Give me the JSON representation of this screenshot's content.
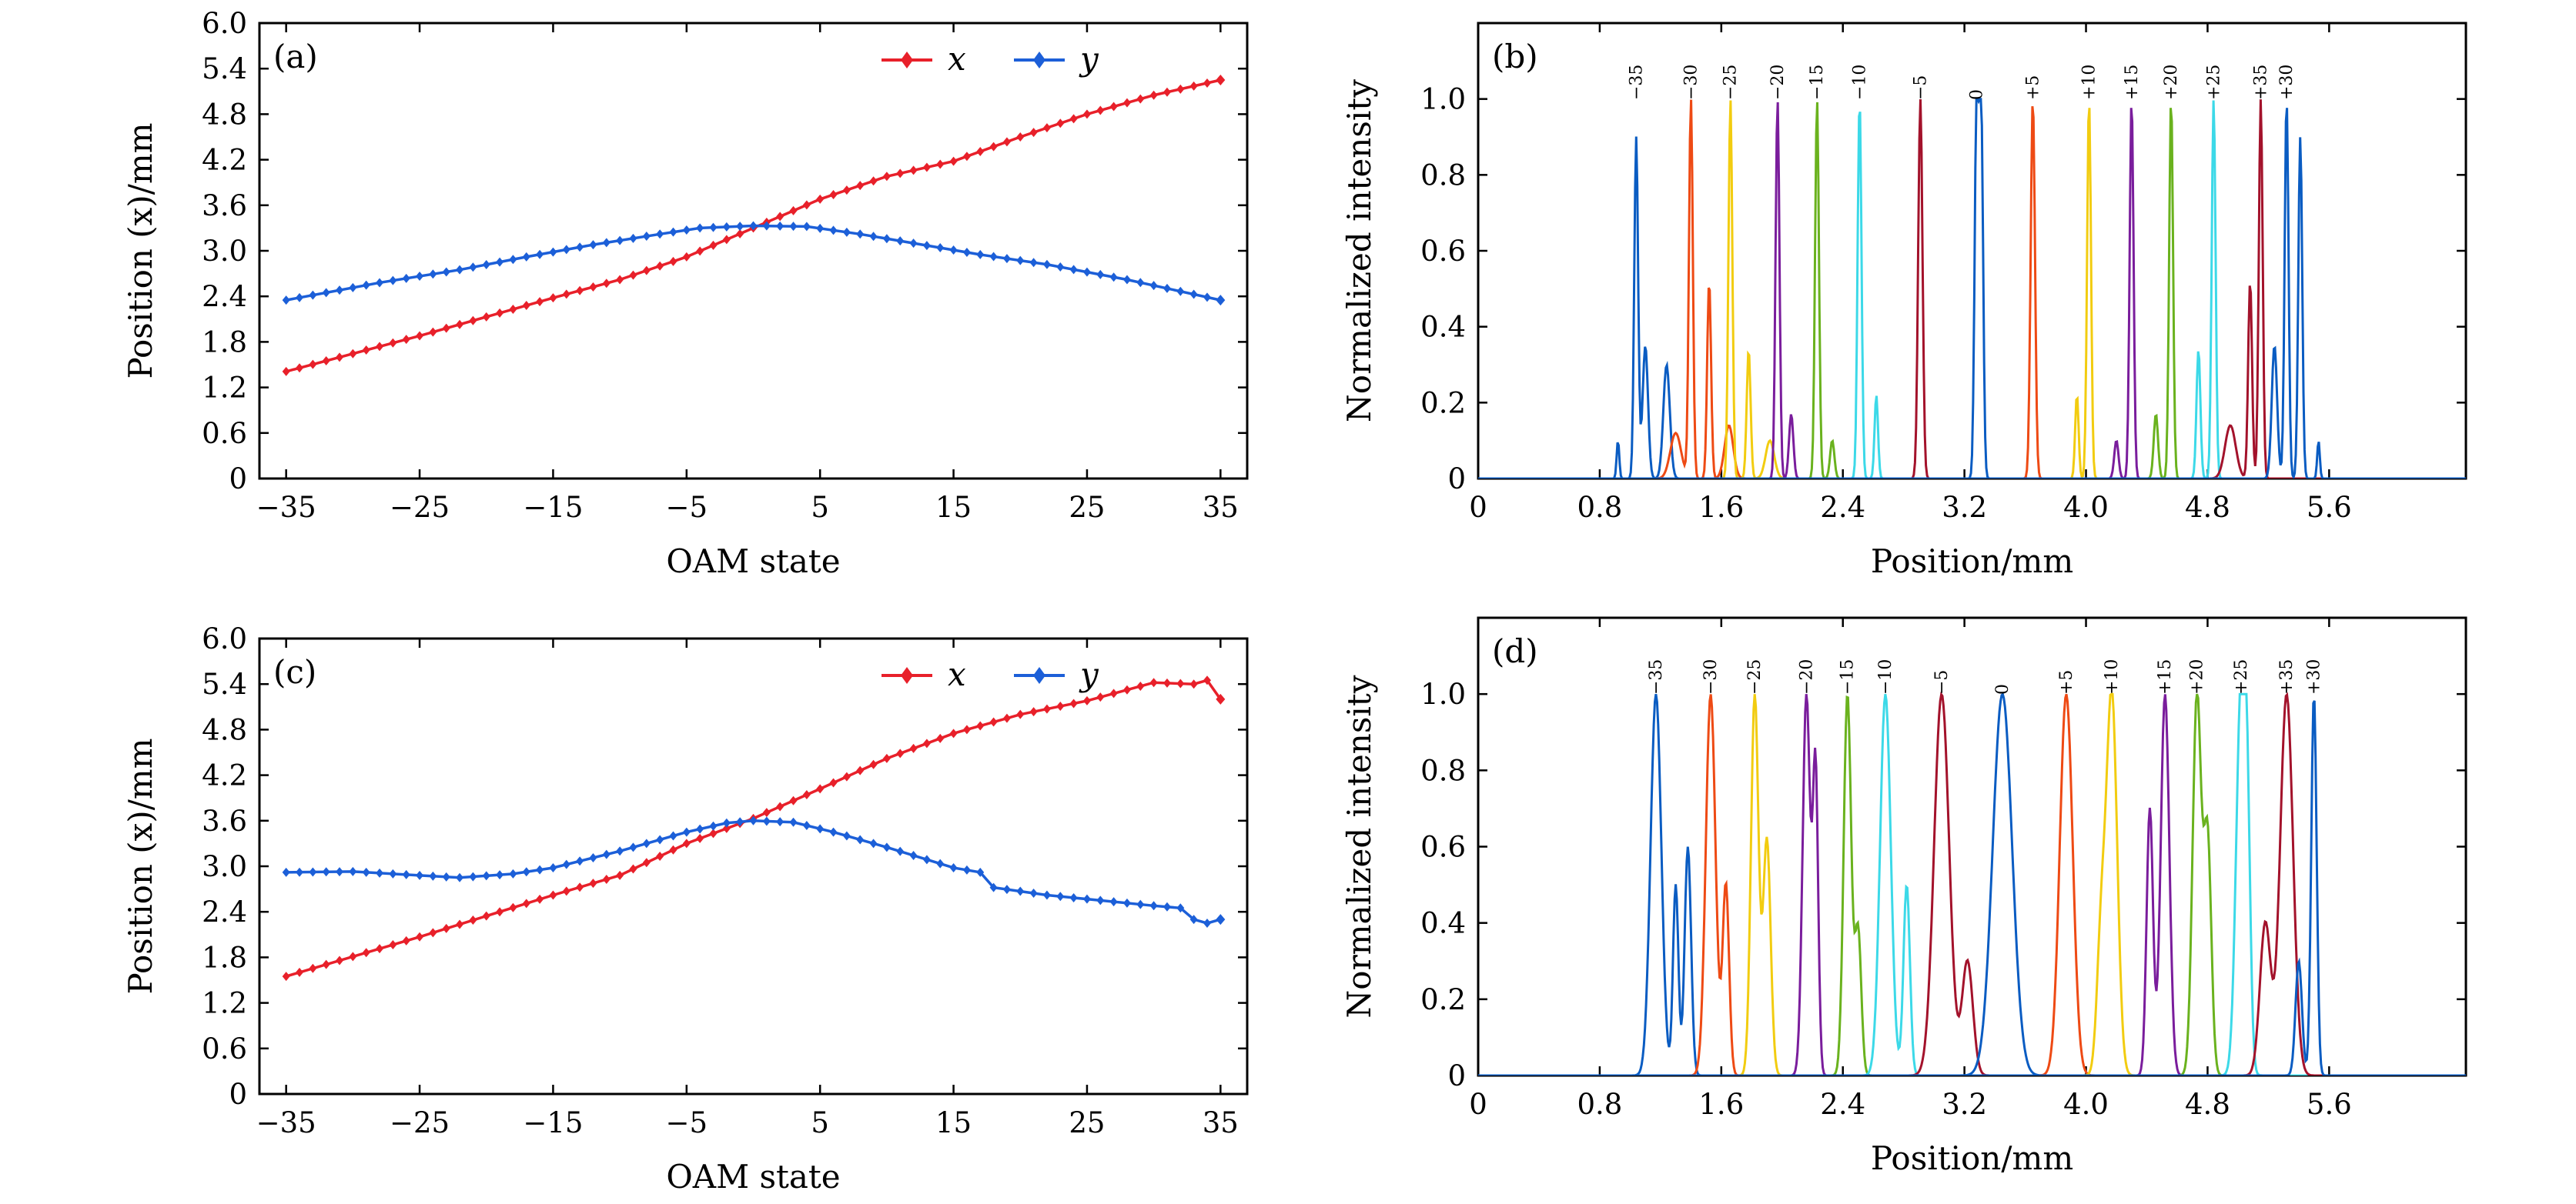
{
  "figure": {
    "panels": [
      {
        "id": "a",
        "label": "(a)"
      },
      {
        "id": "b",
        "label": "(b)"
      },
      {
        "id": "c",
        "label": "(c)"
      },
      {
        "id": "d",
        "label": "(d)"
      }
    ]
  },
  "chart_data": [
    {
      "panel": "(a)",
      "type": "line",
      "xlabel": "OAM state",
      "ylabel": "Position (x)/mm",
      "xlim": [
        -37,
        37
      ],
      "ylim": [
        0,
        6.0
      ],
      "xticks": [
        "−35",
        "−25",
        "−15",
        "−5",
        "5",
        "15",
        "25",
        "35"
      ],
      "xtick_values": [
        -35,
        -25,
        -15,
        -5,
        5,
        15,
        25,
        35
      ],
      "yticks": [
        "0",
        "0.6",
        "1.2",
        "1.8",
        "2.4",
        "3.0",
        "3.6",
        "4.2",
        "4.8",
        "5.4",
        "6.0"
      ],
      "ytick_values": [
        0,
        0.6,
        1.2,
        1.8,
        2.4,
        3.0,
        3.6,
        4.2,
        4.8,
        5.4,
        6.0
      ],
      "legend_position": "top-right",
      "series": [
        {
          "name": "x",
          "color": "#e8202a",
          "marker": "diamond",
          "points": [
            [
              -35,
              1.41
            ],
            [
              -25,
              1.88
            ],
            [
              -15,
              2.38
            ],
            [
              -10,
              2.62
            ],
            [
              -5,
              2.92
            ],
            [
              0,
              3.3
            ],
            [
              5,
              3.68
            ],
            [
              10,
              3.98
            ],
            [
              15,
              4.18
            ],
            [
              20,
              4.5
            ],
            [
              25,
              4.8
            ],
            [
              30,
              5.05
            ],
            [
              35,
              5.25
            ]
          ]
        },
        {
          "name": "y",
          "color": "#1c5fd8",
          "marker": "diamond",
          "points": [
            [
              -35,
              2.35
            ],
            [
              -28,
              2.58
            ],
            [
              -22,
              2.75
            ],
            [
              -17,
              2.92
            ],
            [
              -12,
              3.08
            ],
            [
              -7,
              3.22
            ],
            [
              -4,
              3.3
            ],
            [
              0,
              3.33
            ],
            [
              4,
              3.32
            ],
            [
              8,
              3.22
            ],
            [
              12,
              3.1
            ],
            [
              17,
              2.95
            ],
            [
              22,
              2.82
            ],
            [
              28,
              2.62
            ],
            [
              35,
              2.35
            ]
          ]
        }
      ]
    },
    {
      "panel": "(b)",
      "type": "line",
      "xlabel": "Position/mm",
      "ylabel": "Normalized intensity",
      "xlim": [
        0,
        6.5
      ],
      "ylim": [
        0,
        1.2
      ],
      "xticks": [
        "0",
        "0.8",
        "1.6",
        "2.4",
        "3.2",
        "4.0",
        "4.8",
        "5.6"
      ],
      "xtick_values": [
        0,
        0.8,
        1.6,
        2.4,
        3.2,
        4.0,
        4.8,
        5.6
      ],
      "yticks": [
        "0",
        "0.2",
        "0.4",
        "0.6",
        "0.8",
        "1.0"
      ],
      "ytick_values": [
        0,
        0.2,
        0.4,
        0.6,
        0.8,
        1.0
      ],
      "peak_labels": [
        "−35",
        "−30",
        "−25",
        "−20",
        "−15",
        "−10",
        "−5",
        "0",
        "+5",
        "+10",
        "+15",
        "+20",
        "+25",
        "+35",
        "+30"
      ],
      "series": [
        {
          "label": "−35",
          "color": "#0a5cc2",
          "peaks": [
            [
              1.04,
              0.9,
              0.018
            ],
            [
              1.1,
              0.35,
              0.025
            ],
            [
              1.24,
              0.3,
              0.03
            ],
            [
              0.92,
              0.1,
              0.012
            ]
          ]
        },
        {
          "label": "−30",
          "color": "#ee4a14",
          "peaks": [
            [
              1.4,
              1.0,
              0.018
            ],
            [
              1.52,
              0.52,
              0.018
            ],
            [
              1.65,
              0.14,
              0.04
            ],
            [
              1.3,
              0.12,
              0.05
            ]
          ]
        },
        {
          "label": "−25",
          "color": "#f2cc10",
          "peaks": [
            [
              1.66,
              1.0,
              0.018
            ],
            [
              1.78,
              0.34,
              0.018
            ],
            [
              1.92,
              0.1,
              0.04
            ]
          ]
        },
        {
          "label": "−20",
          "color": "#7a1d9c",
          "peaks": [
            [
              1.97,
              1.0,
              0.018
            ],
            [
              2.06,
              0.17,
              0.02
            ]
          ]
        },
        {
          "label": "−15",
          "color": "#6ab21e",
          "peaks": [
            [
              2.23,
              1.0,
              0.018
            ],
            [
              2.33,
              0.1,
              0.02
            ]
          ]
        },
        {
          "label": "−10",
          "color": "#3cd9e8",
          "peaks": [
            [
              2.51,
              1.0,
              0.018
            ],
            [
              2.62,
              0.22,
              0.016
            ]
          ]
        },
        {
          "label": "−5",
          "color": "#a3122b",
          "peaks": [
            [
              2.91,
              1.0,
              0.02
            ]
          ]
        },
        {
          "label": "0",
          "color": "#0a5cc2",
          "peaks": [
            [
              3.28,
              1.0,
              0.018
            ],
            [
              3.31,
              0.98,
              0.018
            ]
          ]
        },
        {
          "label": "+5",
          "color": "#ee4a14",
          "peaks": [
            [
              3.65,
              1.0,
              0.02
            ]
          ]
        },
        {
          "label": "+10",
          "color": "#f2cc10",
          "peaks": [
            [
              4.02,
              1.0,
              0.018
            ],
            [
              3.94,
              0.22,
              0.016
            ]
          ]
        },
        {
          "label": "+15",
          "color": "#7a1d9c",
          "peaks": [
            [
              4.3,
              1.0,
              0.018
            ],
            [
              4.2,
              0.1,
              0.02
            ]
          ]
        },
        {
          "label": "+20",
          "color": "#6ab21e",
          "peaks": [
            [
              4.56,
              1.0,
              0.018
            ],
            [
              4.46,
              0.17,
              0.02
            ]
          ]
        },
        {
          "label": "+25",
          "color": "#3cd9e8",
          "peaks": [
            [
              4.84,
              1.0,
              0.018
            ],
            [
              4.74,
              0.34,
              0.018
            ]
          ]
        },
        {
          "label": "+35",
          "color": "#a3122b",
          "peaks": [
            [
              5.15,
              1.0,
              0.018
            ],
            [
              5.08,
              0.52,
              0.018
            ],
            [
              4.95,
              0.14,
              0.05
            ]
          ]
        },
        {
          "label": "+30",
          "color": "#0a5cc2",
          "peaks": [
            [
              5.32,
              1.0,
              0.018
            ],
            [
              5.41,
              0.9,
              0.018
            ],
            [
              5.24,
              0.35,
              0.025
            ],
            [
              5.53,
              0.1,
              0.012
            ]
          ]
        }
      ]
    },
    {
      "panel": "(c)",
      "type": "line",
      "xlabel": "OAM state",
      "ylabel": "Position (x)/mm",
      "xlim": [
        -37,
        37
      ],
      "ylim": [
        0,
        6.0
      ],
      "xticks": [
        "−35",
        "−25",
        "−15",
        "−5",
        "5",
        "15",
        "25",
        "35"
      ],
      "xtick_values": [
        -35,
        -25,
        -15,
        -5,
        5,
        15,
        25,
        35
      ],
      "yticks": [
        "0",
        "0.6",
        "1.2",
        "1.8",
        "2.4",
        "3.0",
        "3.6",
        "4.2",
        "4.8",
        "5.4",
        "6.0"
      ],
      "ytick_values": [
        0,
        0.6,
        1.2,
        1.8,
        2.4,
        3.0,
        3.6,
        4.2,
        4.8,
        5.4,
        6.0
      ],
      "legend_position": "top-right",
      "series": [
        {
          "name": "x",
          "color": "#e8202a",
          "marker": "diamond",
          "points": [
            [
              -35,
              1.55
            ],
            [
              -25,
              2.07
            ],
            [
              -15,
              2.62
            ],
            [
              -10,
              2.88
            ],
            [
              -5,
              3.3
            ],
            [
              0,
              3.63
            ],
            [
              5,
              4.02
            ],
            [
              10,
              4.42
            ],
            [
              15,
              4.75
            ],
            [
              20,
              5.0
            ],
            [
              25,
              5.18
            ],
            [
              30,
              5.42
            ],
            [
              33,
              5.4
            ],
            [
              34,
              5.45
            ],
            [
              35,
              5.2
            ]
          ]
        },
        {
          "name": "y",
          "color": "#1c5fd8",
          "marker": "diamond",
          "points": [
            [
              -35,
              2.92
            ],
            [
              -30,
              2.93
            ],
            [
              -25,
              2.88
            ],
            [
              -22,
              2.85
            ],
            [
              -18,
              2.9
            ],
            [
              -15,
              2.98
            ],
            [
              -10,
              3.2
            ],
            [
              -5,
              3.45
            ],
            [
              -2,
              3.57
            ],
            [
              0,
              3.6
            ],
            [
              3,
              3.58
            ],
            [
              6,
              3.45
            ],
            [
              10,
              3.25
            ],
            [
              15,
              2.98
            ],
            [
              17,
              2.92
            ],
            [
              18,
              2.72
            ],
            [
              22,
              2.62
            ],
            [
              26,
              2.55
            ],
            [
              30,
              2.48
            ],
            [
              32,
              2.45
            ],
            [
              33,
              2.3
            ],
            [
              34,
              2.25
            ],
            [
              35,
              2.3
            ]
          ]
        }
      ]
    },
    {
      "panel": "(d)",
      "type": "line",
      "xlabel": "Position/mm",
      "ylabel": "Normalized intensity",
      "xlim": [
        0,
        6.5
      ],
      "ylim": [
        0,
        1.2
      ],
      "xticks": [
        "0",
        "0.8",
        "1.6",
        "2.4",
        "3.2",
        "4.0",
        "4.8",
        "5.6"
      ],
      "xtick_values": [
        0,
        0.8,
        1.6,
        2.4,
        3.2,
        4.0,
        4.8,
        5.6
      ],
      "yticks": [
        "0",
        "0.2",
        "0.4",
        "0.6",
        "0.8",
        "1.0"
      ],
      "ytick_values": [
        0,
        0.2,
        0.4,
        0.6,
        0.8,
        1.0
      ],
      "peak_labels": [
        "−35",
        "−30",
        "−25",
        "−20",
        "−15",
        "−10",
        "−5",
        "0",
        "+5",
        "+10",
        "+15",
        "+20",
        "+25",
        "+35",
        "+30"
      ],
      "series": [
        {
          "label": "−35",
          "color": "#0a5cc2",
          "peaks": [
            [
              1.17,
              1.0,
              0.05
            ],
            [
              1.38,
              0.6,
              0.03
            ],
            [
              1.3,
              0.5,
              0.025
            ]
          ]
        },
        {
          "label": "−30",
          "color": "#ee4a14",
          "peaks": [
            [
              1.53,
              1.0,
              0.045
            ],
            [
              1.63,
              0.5,
              0.03
            ]
          ]
        },
        {
          "label": "−25",
          "color": "#f2cc10",
          "peaks": [
            [
              1.82,
              1.0,
              0.035
            ],
            [
              1.9,
              0.62,
              0.035
            ]
          ]
        },
        {
          "label": "−20",
          "color": "#7a1d9c",
          "peaks": [
            [
              2.16,
              1.0,
              0.035
            ],
            [
              2.22,
              0.8,
              0.025
            ]
          ]
        },
        {
          "label": "−15",
          "color": "#6ab21e",
          "peaks": [
            [
              2.43,
              1.0,
              0.035
            ],
            [
              2.5,
              0.38,
              0.03
            ]
          ]
        },
        {
          "label": "−10",
          "color": "#3cd9e8",
          "peaks": [
            [
              2.68,
              1.0,
              0.05
            ],
            [
              2.82,
              0.5,
              0.03
            ]
          ]
        },
        {
          "label": "−5",
          "color": "#a3122b",
          "peaks": [
            [
              3.05,
              1.0,
              0.07
            ],
            [
              3.22,
              0.3,
              0.05
            ]
          ]
        },
        {
          "label": "0",
          "color": "#0a5cc2",
          "peaks": [
            [
              3.45,
              1.0,
              0.09
            ]
          ]
        },
        {
          "label": "+5",
          "color": "#ee4a14",
          "peaks": [
            [
              3.87,
              1.0,
              0.06
            ]
          ]
        },
        {
          "label": "+10",
          "color": "#f2cc10",
          "peaks": [
            [
              4.17,
              1.0,
              0.05
            ],
            [
              4.1,
              0.35,
              0.04
            ]
          ]
        },
        {
          "label": "+15",
          "color": "#7a1d9c",
          "peaks": [
            [
              4.52,
              1.0,
              0.04
            ],
            [
              4.42,
              0.7,
              0.03
            ]
          ]
        },
        {
          "label": "+20",
          "color": "#6ab21e",
          "peaks": [
            [
              4.73,
              1.0,
              0.04
            ],
            [
              4.8,
              0.62,
              0.035
            ]
          ]
        },
        {
          "label": "+25",
          "color": "#3cd9e8",
          "peaks": [
            [
              5.02,
              1.0,
              0.045
            ],
            [
              5.06,
              0.5,
              0.03
            ]
          ]
        },
        {
          "label": "+35",
          "color": "#a3122b",
          "peaks": [
            [
              5.32,
              1.0,
              0.06
            ],
            [
              5.18,
              0.4,
              0.05
            ]
          ]
        },
        {
          "label": "+30",
          "color": "#0a5cc2",
          "peaks": [
            [
              5.5,
              1.0,
              0.025
            ],
            [
              5.4,
              0.3,
              0.03
            ]
          ]
        }
      ]
    }
  ]
}
